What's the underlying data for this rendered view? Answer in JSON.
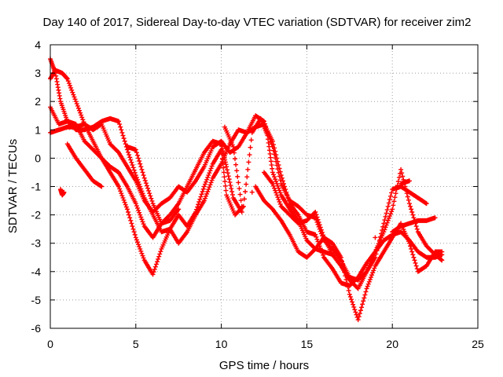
{
  "chart_data": {
    "type": "scatter",
    "title": "Day 140 of 2017, Sidereal Day-to-day VTEC variation (SDTVAR) for receiver zim2",
    "xlabel": "GPS time / hours",
    "ylabel": "SDTVAR / TECUs",
    "xlim": [
      0,
      25
    ],
    "ylim": [
      -6,
      4
    ],
    "xticks": [
      0,
      5,
      10,
      15,
      20,
      25
    ],
    "yticks": [
      -6,
      -5,
      -4,
      -3,
      -2,
      -1,
      0,
      1,
      2,
      3,
      4
    ],
    "grid": true,
    "marker": "plus",
    "color": "#ff0000",
    "series": [
      {
        "values": [
          [
            0.0,
            3.5
          ],
          [
            0.3,
            3.0
          ],
          [
            0.6,
            2.0
          ],
          [
            1.0,
            1.3
          ],
          [
            1.5,
            1.2
          ],
          [
            2.0,
            0.6
          ],
          [
            2.5,
            0.3
          ],
          [
            3.0,
            0.0
          ],
          [
            3.5,
            -0.3
          ],
          [
            4.0,
            -0.5
          ],
          [
            4.5,
            -1.0
          ],
          [
            5.0,
            -1.6
          ],
          [
            5.5,
            -2.4
          ],
          [
            6.0,
            -2.8
          ],
          [
            6.5,
            -2.3
          ],
          [
            7.0,
            -2.0
          ],
          [
            7.5,
            -1.6
          ],
          [
            8.0,
            -1.0
          ],
          [
            8.5,
            -0.4
          ],
          [
            9.0,
            0.2
          ],
          [
            9.5,
            0.6
          ],
          [
            10.0,
            0.5
          ],
          [
            10.3,
            -0.3
          ],
          [
            10.7,
            -1.4
          ],
          [
            11.2,
            -1.9
          ],
          [
            11.8,
            -1.2
          ],
          [
            12.5,
            -0.5
          ],
          [
            13.0,
            -0.9
          ],
          [
            13.5,
            -1.7
          ],
          [
            14.0,
            -2.0
          ],
          [
            14.5,
            -2.3
          ],
          [
            15.0,
            -2.2
          ],
          [
            15.5,
            -1.9
          ],
          [
            16.0,
            -2.8
          ],
          [
            16.5,
            -3.4
          ],
          [
            17.0,
            -3.8
          ],
          [
            17.5,
            -4.3
          ],
          [
            18.0,
            -4.6
          ],
          [
            18.5,
            -4.0
          ],
          [
            19.0,
            -3.3
          ],
          [
            19.5,
            -2.9
          ],
          [
            20.0,
            -2.7
          ],
          [
            20.5,
            -2.6
          ],
          [
            21.0,
            -2.9
          ],
          [
            21.5,
            -3.3
          ],
          [
            22.0,
            -3.5
          ],
          [
            22.5,
            -3.5
          ],
          [
            22.9,
            -3.4
          ]
        ]
      },
      {
        "values": [
          [
            0.0,
            2.8
          ],
          [
            0.3,
            3.1
          ],
          [
            0.7,
            3.0
          ],
          [
            1.0,
            2.8
          ],
          [
            1.5,
            2.0
          ],
          [
            2.0,
            1.2
          ],
          [
            2.5,
            0.6
          ],
          [
            3.0,
            0.0
          ],
          [
            3.5,
            -0.5
          ],
          [
            4.0,
            -1.0
          ],
          [
            4.5,
            -1.8
          ],
          [
            5.0,
            -2.8
          ],
          [
            5.5,
            -3.6
          ],
          [
            6.0,
            -4.1
          ],
          [
            6.5,
            -3.2
          ],
          [
            7.0,
            -2.5
          ],
          [
            7.5,
            -2.0
          ],
          [
            8.0,
            -2.4
          ],
          [
            8.5,
            -1.9
          ],
          [
            9.0,
            -1.0
          ],
          [
            9.5,
            -0.2
          ],
          [
            10.0,
            0.3
          ],
          [
            10.3,
            -1.3
          ],
          [
            10.8,
            -2.0
          ],
          [
            11.3,
            -1.7
          ],
          [
            11.8,
            0.9
          ],
          [
            12.3,
            1.4
          ],
          [
            12.7,
            0.8
          ],
          [
            13.0,
            -0.5
          ],
          [
            13.5,
            -1.3
          ],
          [
            14.0,
            -1.8
          ],
          [
            14.5,
            -2.2
          ],
          [
            15.0,
            -2.9
          ],
          [
            15.5,
            -3.2
          ],
          [
            16.0,
            -2.8
          ],
          [
            16.5,
            -3.0
          ],
          [
            17.0,
            -3.5
          ],
          [
            17.5,
            -4.8
          ],
          [
            18.0,
            -5.7
          ],
          [
            18.5,
            -4.6
          ],
          [
            19.0,
            -3.8
          ],
          [
            19.5,
            -3.3
          ],
          [
            20.0,
            -2.8
          ],
          [
            20.5,
            -2.3
          ],
          [
            21.0,
            -3.0
          ],
          [
            21.5,
            -4.0
          ],
          [
            22.0,
            -3.8
          ],
          [
            22.5,
            -3.3
          ],
          [
            22.9,
            -3.3
          ]
        ]
      },
      {
        "values": [
          [
            0.0,
            1.8
          ],
          [
            0.5,
            1.2
          ],
          [
            1.0,
            1.3
          ],
          [
            1.5,
            1.0
          ],
          [
            2.0,
            1.0
          ],
          [
            2.5,
            1.1
          ],
          [
            3.0,
            1.3
          ],
          [
            3.5,
            1.4
          ],
          [
            4.0,
            1.3
          ],
          [
            4.5,
            0.3
          ],
          [
            5.0,
            -0.6
          ],
          [
            5.5,
            -1.4
          ],
          [
            6.0,
            -2.0
          ],
          [
            6.5,
            -2.6
          ],
          [
            7.0,
            -2.5
          ],
          [
            7.5,
            -3.0
          ],
          [
            8.0,
            -2.6
          ],
          [
            8.5,
            -2.0
          ],
          [
            9.0,
            -1.5
          ],
          [
            9.5,
            -0.7
          ],
          [
            10.0,
            -0.2
          ],
          [
            10.5,
            0.5
          ],
          [
            11.0,
            1.0
          ],
          [
            11.5,
            0.9
          ],
          [
            12.0,
            1.1
          ],
          [
            12.5,
            1.2
          ],
          [
            13.0,
            0.6
          ],
          [
            13.5,
            -0.6
          ],
          [
            14.0,
            -1.6
          ],
          [
            14.5,
            -2.0
          ],
          [
            15.0,
            -2.6
          ],
          [
            15.5,
            -2.7
          ],
          [
            16.0,
            -3.5
          ],
          [
            16.5,
            -3.9
          ],
          [
            17.0,
            -4.4
          ],
          [
            17.5,
            -4.5
          ],
          [
            18.0,
            -4.2
          ],
          [
            18.5,
            -3.7
          ],
          [
            19.0,
            -3.3
          ],
          [
            19.5,
            -2.6
          ],
          [
            20.0,
            -1.8
          ],
          [
            20.5,
            -0.4
          ],
          [
            21.0,
            -1.6
          ],
          [
            21.5,
            -2.6
          ],
          [
            22.0,
            -3.1
          ],
          [
            22.5,
            -3.4
          ],
          [
            22.9,
            -3.6
          ]
        ]
      },
      {
        "values": [
          [
            0.0,
            0.9
          ],
          [
            0.5,
            1.0
          ],
          [
            1.0,
            1.1
          ],
          [
            1.5,
            1.1
          ],
          [
            2.0,
            1.2
          ],
          [
            2.5,
            1.0
          ],
          [
            3.0,
            1.2
          ],
          [
            3.5,
            0.5
          ],
          [
            4.0,
            0.2
          ],
          [
            4.5,
            -0.3
          ],
          [
            5.0,
            -0.8
          ],
          [
            5.5,
            -1.5
          ],
          [
            6.0,
            -1.9
          ],
          [
            6.5,
            -1.6
          ],
          [
            7.0,
            -1.4
          ],
          [
            7.5,
            -1.0
          ],
          [
            8.0,
            -1.2
          ],
          [
            8.5,
            -0.8
          ],
          [
            9.0,
            -0.3
          ],
          [
            9.5,
            0.4
          ],
          [
            10.0,
            0.6
          ],
          [
            10.5,
            0.2
          ],
          [
            11.0,
            0.4
          ],
          [
            11.5,
            0.9
          ],
          [
            12.0,
            1.5
          ],
          [
            12.5,
            1.3
          ],
          [
            13.0,
            0.4
          ],
          [
            13.5,
            -0.9
          ],
          [
            14.0,
            -1.5
          ],
          [
            14.5,
            -1.7
          ],
          [
            15.0,
            -2.0
          ],
          [
            15.5,
            -2.1
          ],
          [
            16.0,
            -2.9
          ],
          [
            16.5,
            -3.2
          ],
          [
            17.0,
            -3.6
          ],
          [
            17.5,
            -4.2
          ],
          [
            18.0,
            -4.3
          ],
          [
            18.5,
            -4.0
          ],
          [
            19.0,
            -3.5
          ],
          [
            19.5,
            -2.3
          ],
          [
            20.0,
            -1.1
          ],
          [
            20.5,
            -1.0
          ],
          [
            21.0,
            -1.2
          ],
          [
            21.5,
            -1.4
          ],
          [
            22.0,
            -1.6
          ]
        ]
      },
      {
        "values": [
          [
            1.0,
            0.5
          ],
          [
            1.5,
            0.0
          ],
          [
            2.0,
            -0.4
          ],
          [
            2.5,
            -0.8
          ],
          [
            3.0,
            -1.0
          ],
          [
            4.5,
            0.4
          ],
          [
            5.0,
            0.3
          ],
          [
            5.5,
            -0.7
          ],
          [
            6.0,
            -1.6
          ],
          [
            6.5,
            -2.3
          ],
          [
            7.0,
            -2.2
          ],
          [
            7.5,
            -1.8
          ],
          [
            12.0,
            -1.0
          ],
          [
            12.5,
            -1.5
          ],
          [
            13.0,
            -1.8
          ],
          [
            13.5,
            -2.2
          ],
          [
            14.0,
            -2.7
          ],
          [
            14.5,
            -3.3
          ],
          [
            15.0,
            -3.5
          ],
          [
            15.5,
            -3.2
          ],
          [
            16.0,
            -3.3
          ],
          [
            16.5,
            -3.4
          ],
          [
            20.0,
            -2.6
          ],
          [
            20.5,
            -2.4
          ],
          [
            21.0,
            -2.3
          ],
          [
            21.5,
            -2.2
          ],
          [
            22.0,
            -2.2
          ],
          [
            22.5,
            -2.1
          ]
        ]
      },
      {
        "values": [
          [
            0.6,
            -1.1
          ],
          [
            0.7,
            -1.3
          ],
          [
            0.8,
            -1.2
          ],
          [
            10.2,
            1.1
          ],
          [
            10.7,
            0.4
          ],
          [
            11.2,
            -1.7
          ],
          [
            19.0,
            -2.8
          ],
          [
            20.5,
            -0.9
          ],
          [
            21.0,
            -0.8
          ]
        ]
      }
    ]
  }
}
